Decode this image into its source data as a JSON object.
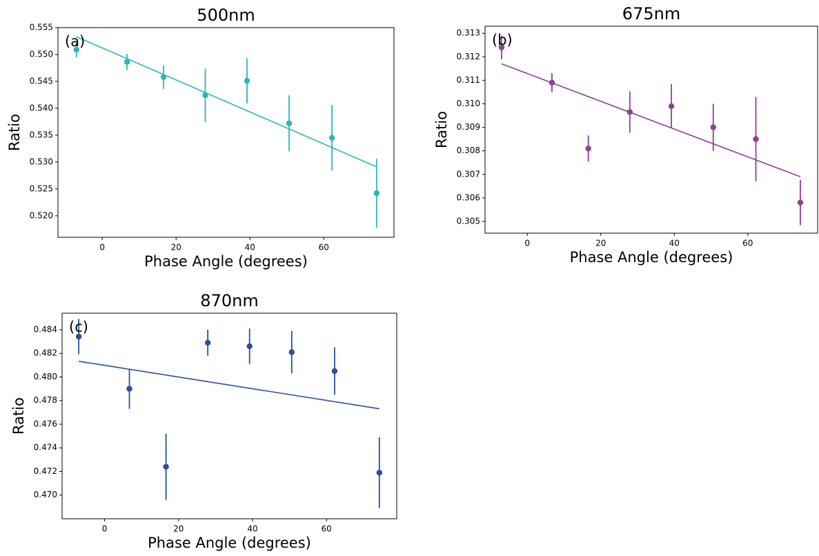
{
  "chart_data": [
    {
      "type": "scatter",
      "title": "500nm",
      "annotation": "(a)",
      "xlabel": "Phase Angle (degrees)",
      "ylabel": "Ratio",
      "color": "#2ab7bb",
      "x": [
        -7,
        6.7,
        16.6,
        27.9,
        39.2,
        50.6,
        62.2,
        74.3
      ],
      "values": [
        0.5509,
        0.5486,
        0.5458,
        0.5424,
        0.5451,
        0.5372,
        0.5345,
        0.5242
      ],
      "errors": [
        0.0014,
        0.0015,
        0.0022,
        0.005,
        0.0042,
        0.0052,
        0.0061,
        0.0064
      ],
      "fit": {
        "x": [
          -7,
          74.3
        ],
        "values": [
          0.5533,
          0.5291
        ]
      },
      "xlim": [
        -12,
        79
      ],
      "xticks": [
        0,
        20,
        40,
        60
      ],
      "ylim": [
        0.516,
        0.555
      ],
      "yticks": [
        {
          "value": 0.52,
          "label": "0.520"
        },
        0.525,
        {
          "value": 0.53,
          "label": "0.530"
        },
        0.535,
        {
          "value": 0.54,
          "label": "0.540"
        },
        0.545,
        {
          "value": 0.55,
          "label": "0.550"
        },
        0.555
      ]
    },
    {
      "type": "scatter",
      "title": "675nm",
      "annotation": "(b)",
      "xlabel": "Phase Angle (degrees)",
      "ylabel": "Ratio",
      "color": "#8e3f96",
      "x": [
        -7,
        6.7,
        16.6,
        27.9,
        39.2,
        50.6,
        62.2,
        74.3
      ],
      "values": [
        0.3124,
        0.3109,
        0.3081,
        0.30965,
        0.3099,
        0.309,
        0.3085,
        0.3058
      ],
      "errors": [
        0.0005,
        0.0004,
        0.00056,
        0.00088,
        0.00094,
        0.001,
        0.0018,
        0.00096
      ],
      "fit": {
        "x": [
          -7,
          74.3
        ],
        "values": [
          0.3117,
          0.3069
        ]
      },
      "xlim": [
        -11.5,
        79
      ],
      "xticks": [
        0,
        20,
        40,
        60
      ],
      "ylim": [
        0.3045,
        0.3133
      ],
      "yticks": [
        0.305,
        0.306,
        0.307,
        0.308,
        0.309,
        {
          "value": 0.31,
          "label": "0.310"
        },
        0.311,
        0.312,
        0.313
      ]
    },
    {
      "type": "scatter",
      "title": "870nm",
      "annotation": "(c)",
      "xlabel": "Phase Angle (degrees)",
      "ylabel": "Ratio",
      "color": "#2a4d9c",
      "x": [
        -7,
        6.7,
        16.6,
        27.9,
        39.2,
        50.6,
        62.2,
        74.3
      ],
      "values": [
        0.48342,
        0.479,
        0.4724,
        0.4829,
        0.4826,
        0.4821,
        0.4805,
        0.4719
      ],
      "errors": [
        0.0015,
        0.0017,
        0.0028,
        0.0011,
        0.0015,
        0.0018,
        0.002,
        0.003
      ],
      "fit": {
        "x": [
          -7,
          74.3
        ],
        "values": [
          0.48133,
          0.47731
        ]
      },
      "xlim": [
        -11.5,
        79
      ],
      "xticks": [
        0,
        20,
        40,
        60
      ],
      "ylim": [
        0.468,
        0.4854
      ],
      "yticks": [
        {
          "value": 0.47,
          "label": "0.470"
        },
        0.472,
        0.474,
        0.476,
        0.478,
        {
          "value": 0.48,
          "label": "0.480"
        },
        0.482,
        0.484
      ]
    }
  ]
}
